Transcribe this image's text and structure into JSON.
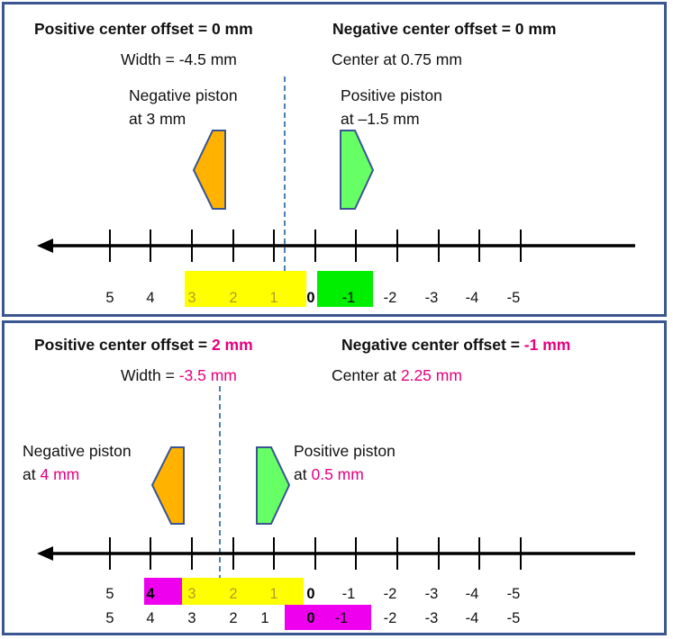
{
  "colors": {
    "border": "#3a5590",
    "highlight_text": "#e6007e",
    "yellow": "#ffff00",
    "green": "#00ee00",
    "magenta": "#ee00ee",
    "negative_piston": "#ffb300",
    "positive_piston": "#66ff66",
    "dashed_line": "#4a7fb5"
  },
  "panel1": {
    "pos_offset_label": "Positive center offset = ",
    "pos_offset_value": "0 mm",
    "neg_offset_label": "Negative center offset = ",
    "neg_offset_value": "0 mm",
    "width_label": "Width = ",
    "width_value": "-4.5 mm",
    "center_label": "Center at ",
    "center_value": "0.75 mm",
    "neg_piston_line1": "Negative piston",
    "neg_piston_line2_prefix": "at ",
    "neg_piston_line2_value": "3 mm",
    "pos_piston_line1": "Positive piston",
    "pos_piston_line2_prefix": "at ",
    "pos_piston_line2_value": "–1.5 mm",
    "axis_labels": [
      "5",
      "4",
      "3",
      "2",
      "1",
      "0",
      "-1",
      "-2",
      "-3",
      "-4",
      "-5"
    ]
  },
  "panel2": {
    "pos_offset_label": "Positive center offset = ",
    "pos_offset_value": "2 mm",
    "neg_offset_label": "Negative center offset = ",
    "neg_offset_value": "-1 mm",
    "width_label": "Width = ",
    "width_value": "-3.5 mm",
    "center_label": "Center at ",
    "center_value": "2.25 mm",
    "neg_piston_line1": "Negative piston",
    "neg_piston_line2_prefix": "at ",
    "neg_piston_line2_value": "4 mm",
    "pos_piston_line1": "Positive piston",
    "pos_piston_line2_prefix": "at ",
    "pos_piston_line2_value": "0.5 mm",
    "axis_labels_row1": [
      "5",
      "4",
      "3",
      "2",
      "1",
      "0",
      "-1",
      "-2",
      "-3",
      "-4",
      "-5"
    ],
    "axis_labels_row2": [
      "5",
      "4",
      "3",
      "2",
      "1",
      "0",
      "-1",
      "-2",
      "-3",
      "-4",
      "-5"
    ]
  }
}
